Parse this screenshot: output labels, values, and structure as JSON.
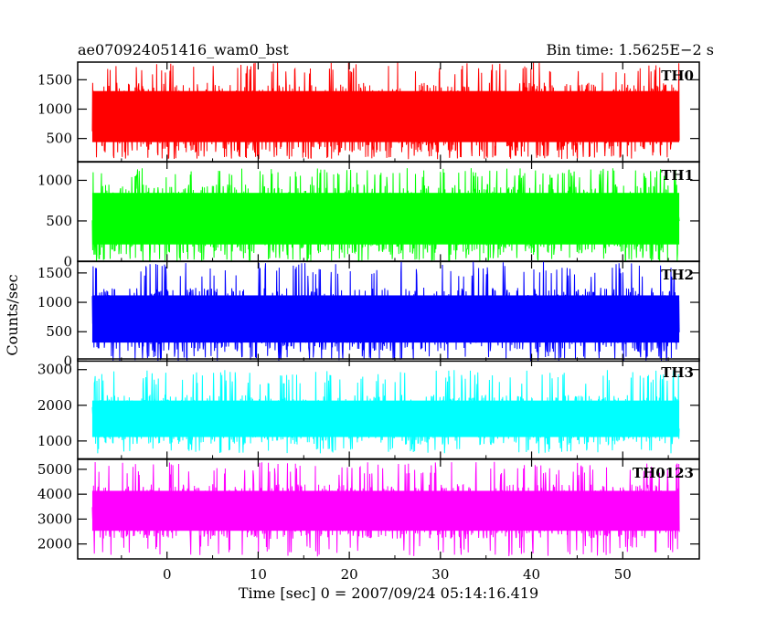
{
  "header": {
    "title": "ae070924051416_wam0_bst",
    "bin_time": "Bin time: 1.5625E−2 s"
  },
  "axes": {
    "ylabel": "Counts/sec",
    "xlabel": "Time [sec] 0 = 2007/09/24 05:14:16.419"
  },
  "chart_data": {
    "type": "line",
    "title": "ae070924051416_wam0_bst",
    "subtitle": "Bin time: 1.5625E−2 s",
    "xlabel": "Time [sec] 0 = 2007/09/24 05:14:16.419",
    "ylabel": "Counts/sec",
    "xlim": [
      -9.8,
      58.4
    ],
    "x_ticks": [
      0,
      10,
      20,
      30,
      40,
      50
    ],
    "x_data_range": [
      -8.2,
      56.2
    ],
    "grid": false,
    "panels": [
      {
        "name": "TH0",
        "color": "#ff0000",
        "ylim": [
          100,
          1800
        ],
        "y_ticks": [
          500,
          1000,
          1500
        ],
        "band_low": 260,
        "band_high": 1450,
        "min": 150,
        "max": 1800,
        "mean": 850
      },
      {
        "name": "TH1",
        "color": "#00ff00",
        "ylim": [
          0,
          1230
        ],
        "y_ticks": [
          0,
          500,
          1000
        ],
        "band_low": 80,
        "band_high": 950,
        "min": 0,
        "max": 1150,
        "mean": 500
      },
      {
        "name": "TH2",
        "color": "#0000ff",
        "ylim": [
          0,
          1700
        ],
        "y_ticks": [
          0,
          500,
          1000,
          1500
        ],
        "band_low": 150,
        "band_high": 1250,
        "min": 0,
        "max": 1700,
        "mean": 700
      },
      {
        "name": "TH3",
        "color": "#00ffff",
        "ylim": [
          500,
          3300
        ],
        "y_ticks": [
          1000,
          2000,
          3000
        ],
        "band_low": 900,
        "band_high": 2300,
        "min": 650,
        "max": 3000,
        "mean": 1600
      },
      {
        "name": "TH0123",
        "color": "#ff00ff",
        "ylim": [
          1400,
          5400
        ],
        "y_ticks": [
          2000,
          3000,
          4000,
          5000
        ],
        "band_low": 2200,
        "band_high": 4400,
        "min": 1500,
        "max": 5300,
        "mean": 3300
      }
    ]
  }
}
